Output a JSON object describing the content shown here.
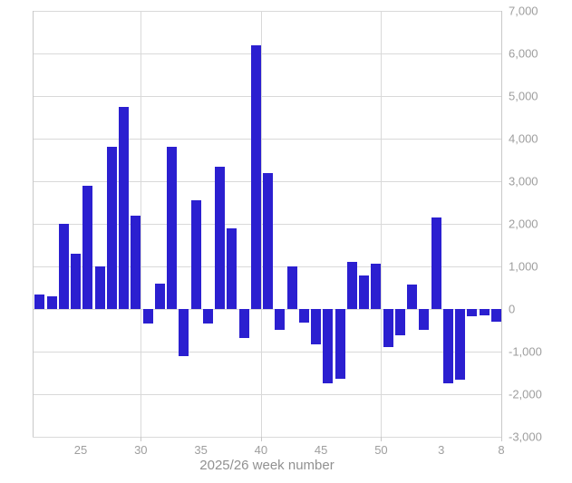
{
  "chart_data": {
    "type": "bar",
    "title": "",
    "xlabel": "2025/26 week number",
    "ylabel": "",
    "categories": [
      "22",
      "23",
      "24",
      "25",
      "26",
      "27",
      "28",
      "29",
      "30",
      "31",
      "32",
      "33",
      "34",
      "35",
      "36",
      "37",
      "38",
      "39",
      "40",
      "41",
      "42",
      "43",
      "44",
      "45",
      "46",
      "47",
      "48",
      "49",
      "50",
      "51",
      "52",
      "1",
      "2",
      "3",
      "4",
      "5",
      "6",
      "7",
      "8"
    ],
    "values": [
      350,
      300,
      2000,
      1300,
      2900,
      1000,
      3800,
      4750,
      2200,
      -330,
      600,
      3800,
      -1100,
      2550,
      -330,
      3350,
      1900,
      -690,
      6200,
      3200,
      -490,
      1000,
      -320,
      -830,
      -1750,
      -1640,
      1100,
      780,
      1070,
      -900,
      -620,
      570,
      -480,
      2150,
      -1750,
      -1670,
      -160,
      -150,
      -300
    ],
    "ylim": [
      -3000,
      7000
    ],
    "y_tick_step": 1000,
    "y_tick_labels": [
      "7,000",
      "6,000",
      "5,000",
      "4,000",
      "3,000",
      "2,000",
      "1,000",
      "0",
      "-1,000",
      "-2,000",
      "-3,000"
    ],
    "y_axis_side": "right",
    "x_tick_labels": [
      "25",
      "30",
      "35",
      "40",
      "45",
      "50",
      "3",
      "8"
    ],
    "x_tick_category_indexes": [
      3,
      8,
      13,
      18,
      23,
      28,
      33,
      38
    ],
    "x_gridline_category_indexes": [
      8,
      18,
      28
    ],
    "bar_color": "#2b1fd0",
    "gridline_color": "#d9d9d9",
    "axis_text_color": "#9e9e9e",
    "grid": true,
    "legend": "none"
  }
}
